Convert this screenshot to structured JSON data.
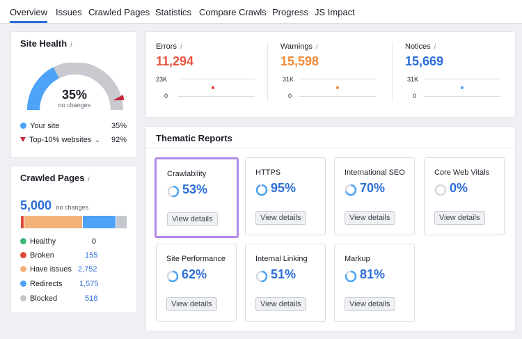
{
  "tabs": [
    {
      "label": "Overview",
      "active": true
    },
    {
      "label": "Issues"
    },
    {
      "label": "Crawled Pages"
    },
    {
      "label": "Statistics"
    },
    {
      "label": "Compare Crawls"
    },
    {
      "label": "Progress"
    },
    {
      "label": "JS Impact"
    }
  ],
  "site_health": {
    "title": "Site Health",
    "score": "35%",
    "score_value": 35,
    "top10_value": 92,
    "subtitle": "no changes",
    "legend": [
      {
        "label": "Your site",
        "value": "35%",
        "color": "#4da3f7"
      },
      {
        "label": "Top-10% websites",
        "value": "92%",
        "color": "#c4283b"
      }
    ]
  },
  "crawled_pages": {
    "title": "Crawled Pages",
    "total": "5,000",
    "total_note": "no changes",
    "bar_fractions": [
      0.0,
      0.031,
      0.551,
      0.315,
      0.104
    ],
    "rows": [
      {
        "label": "Healthy",
        "value": "0",
        "color": "#3cb878"
      },
      {
        "label": "Broken",
        "value": "155",
        "color": "#e2493b"
      },
      {
        "label": "Have issues",
        "value": "2,752",
        "color": "#f2b27a"
      },
      {
        "label": "Redirects",
        "value": "1,575",
        "color": "#4da3f7"
      },
      {
        "label": "Blocked",
        "value": "518",
        "color": "#c4c7ce"
      }
    ]
  },
  "metrics": [
    {
      "label": "Errors",
      "value": "11,294",
      "color": "#e8553e",
      "axis_top": "23K",
      "axis_bottom": "0",
      "dot_color": "#e2392d"
    },
    {
      "label": "Warnings",
      "value": "15,598",
      "color": "#f08a37",
      "axis_top": "31K",
      "axis_bottom": "0",
      "dot_color": "#f08a37"
    },
    {
      "label": "Notices",
      "value": "15,669",
      "color": "#2b6ed9",
      "axis_top": "31K",
      "axis_bottom": "0",
      "dot_color": "#4da3f7"
    }
  ],
  "thematic": {
    "title": "Thematic Reports",
    "button_label": "View details",
    "reports": [
      {
        "name": "Crawlability",
        "value": "53%",
        "pct": 53,
        "highlight": true
      },
      {
        "name": "HTTPS",
        "value": "95%",
        "pct": 95
      },
      {
        "name": "International SEO",
        "value": "70%",
        "pct": 70
      },
      {
        "name": "Core Web Vitals",
        "value": "0%",
        "pct": 0
      },
      {
        "name": "Site Performance",
        "value": "62%",
        "pct": 62
      },
      {
        "name": "Internal Linking",
        "value": "51%",
        "pct": 51
      },
      {
        "name": "Markup",
        "value": "81%",
        "pct": 81
      }
    ]
  },
  "colors": {
    "accent": "#2b6ed9",
    "highlight": "#b28ae8",
    "gauge_track": "#c8cacf"
  }
}
